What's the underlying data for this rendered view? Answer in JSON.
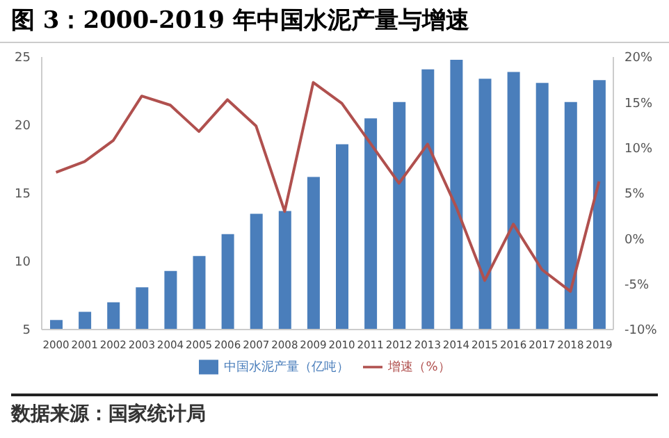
{
  "chart_data": {
    "type": "bar",
    "title": "图 3：2000-2019 年中国水泥产量与增速",
    "categories": [
      "2000",
      "2001",
      "2002",
      "2003",
      "2004",
      "2005",
      "2006",
      "2007",
      "2008",
      "2009",
      "2010",
      "2011",
      "2012",
      "2013",
      "2014",
      "2015",
      "2016",
      "2017",
      "2018",
      "2019"
    ],
    "series": [
      {
        "name": "中国水泥产量（亿吨）",
        "color": "#4a7ebb",
        "values": [
          5.7,
          6.3,
          7.0,
          8.1,
          9.3,
          10.4,
          12.0,
          13.5,
          13.7,
          16.2,
          18.6,
          20.5,
          21.7,
          24.1,
          24.8,
          23.4,
          23.9,
          23.1,
          21.7,
          23.3
        ]
      },
      {
        "name": "增速（%）",
        "type": "line",
        "axis": "y2",
        "color": "#b0504e",
        "values": [
          7.3,
          8.5,
          10.8,
          15.7,
          14.7,
          11.8,
          15.3,
          12.4,
          3.0,
          17.2,
          14.9,
          10.5,
          6.1,
          10.4,
          3.5,
          -4.6,
          1.6,
          -3.4,
          -5.8,
          6.3
        ]
      }
    ],
    "ylim": [
      5,
      25
    ],
    "yticks": [
      5,
      10,
      15,
      20,
      25
    ],
    "y2lim": [
      -10,
      20
    ],
    "y2ticks": [
      {
        "value": -10,
        "label": "-10%"
      },
      {
        "value": -5,
        "label": "-5%"
      },
      {
        "value": 0,
        "label": "0%"
      },
      {
        "value": 5,
        "label": "5%"
      },
      {
        "value": 10,
        "label": "10%"
      },
      {
        "value": 15,
        "label": "15%"
      },
      {
        "value": 20,
        "label": "20%"
      }
    ],
    "grid": false,
    "legend": "bottom",
    "marker": "none",
    "line_style": "solid",
    "annotations": [
      "数据来源：国家统计局"
    ]
  }
}
